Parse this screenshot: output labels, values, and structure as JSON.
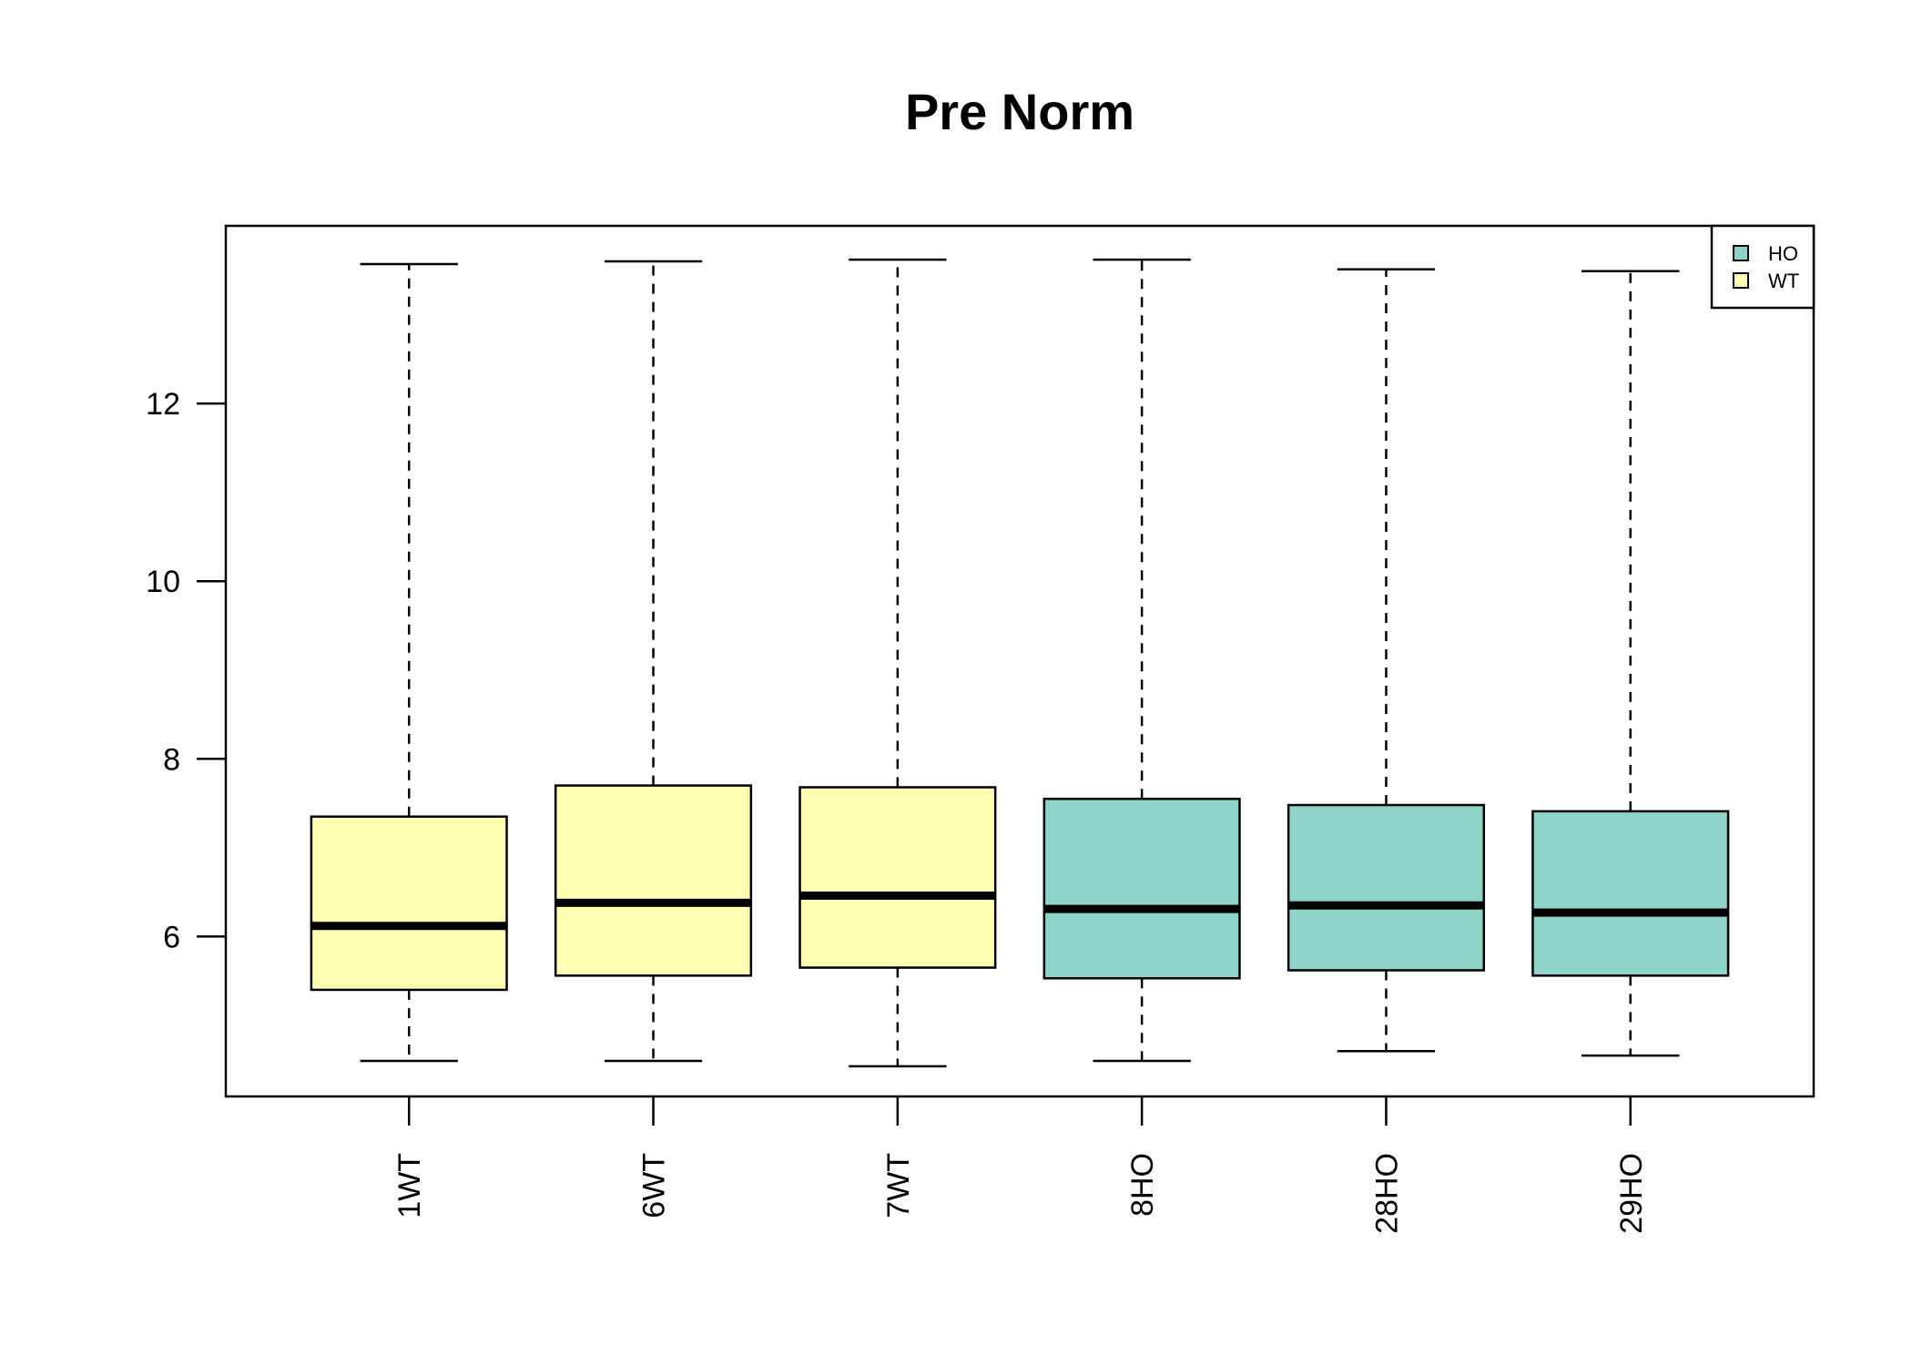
{
  "chart_data": {
    "type": "box",
    "title": "Pre Norm",
    "xlabel": "",
    "ylabel": "",
    "categories": [
      "1WT",
      "6WT",
      "7WT",
      "8HO",
      "28HO",
      "29HO"
    ],
    "groups": [
      "WT",
      "WT",
      "WT",
      "HO",
      "HO",
      "HO"
    ],
    "boxes": [
      {
        "name": "1WT",
        "group": "WT",
        "whisker_low": 4.6,
        "q1": 5.4,
        "median": 6.12,
        "q3": 7.35,
        "whisker_high": 13.57
      },
      {
        "name": "6WT",
        "group": "WT",
        "whisker_low": 4.6,
        "q1": 5.56,
        "median": 6.38,
        "q3": 7.7,
        "whisker_high": 13.6
      },
      {
        "name": "7WT",
        "group": "WT",
        "whisker_low": 4.54,
        "q1": 5.65,
        "median": 6.46,
        "q3": 7.68,
        "whisker_high": 13.62
      },
      {
        "name": "8HO",
        "group": "HO",
        "whisker_low": 4.6,
        "q1": 5.53,
        "median": 6.31,
        "q3": 7.55,
        "whisker_high": 13.62
      },
      {
        "name": "28HO",
        "group": "HO",
        "whisker_low": 4.71,
        "q1": 5.62,
        "median": 6.35,
        "q3": 7.48,
        "whisker_high": 13.51
      },
      {
        "name": "29HO",
        "group": "HO",
        "whisker_low": 4.66,
        "q1": 5.56,
        "median": 6.27,
        "q3": 7.41,
        "whisker_high": 13.49
      }
    ],
    "ylim": [
      4.2,
      14.0
    ],
    "yticks": [
      6,
      8,
      10,
      12
    ],
    "legend": {
      "position": "top-right",
      "entries": [
        {
          "label": "HO",
          "color": "#8DD3C7"
        },
        {
          "label": "WT",
          "color": "#FFFFB3"
        }
      ]
    },
    "colors": {
      "HO": "#8DD3C7",
      "WT": "#FFFFB3"
    },
    "grid": false
  }
}
